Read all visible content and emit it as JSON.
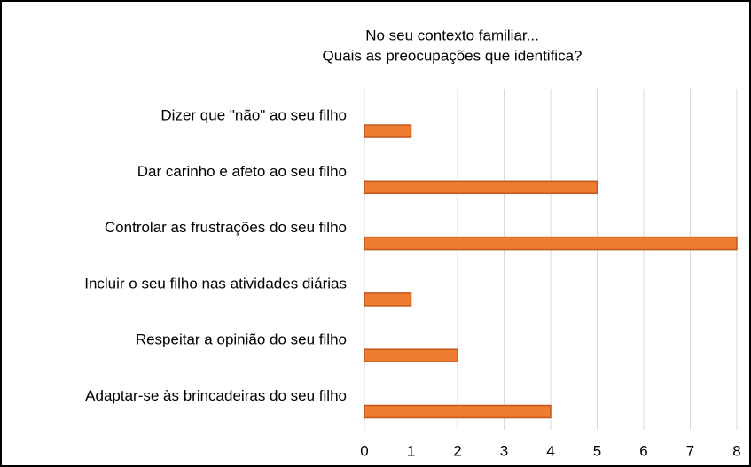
{
  "chart_data": {
    "type": "bar",
    "orientation": "horizontal",
    "title": "No seu contexto familiar...",
    "subtitle": "Quais as preocupações que identifica?",
    "categories": [
      "Dizer que \"não\" ao seu filho",
      "Dar carinho e afeto ao seu filho",
      "Controlar as frustrações do seu filho",
      "Incluir o seu filho nas atividades diárias",
      "Respeitar a opinião do seu filho",
      "Adaptar-se às brincadeiras do seu filho"
    ],
    "values": [
      1,
      5,
      8,
      1,
      2,
      4
    ],
    "color": "#ed7d31",
    "xlim": [
      0,
      8
    ],
    "xticks": [
      0,
      1,
      2,
      3,
      4,
      5,
      6,
      7,
      8
    ],
    "grid": true
  }
}
